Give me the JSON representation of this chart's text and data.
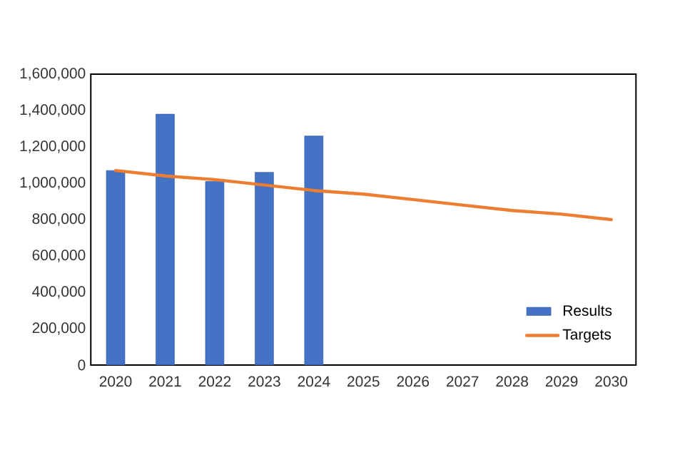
{
  "chart_data": {
    "type": "bar",
    "categories": [
      "2020",
      "2021",
      "2022",
      "2023",
      "2024",
      "2025",
      "2026",
      "2027",
      "2028",
      "2029",
      "2030"
    ],
    "series": [
      {
        "name": "Results",
        "color": "#4472c4",
        "values": [
          1070000,
          1380000,
          1010000,
          1060000,
          1260000,
          null,
          null,
          null,
          null,
          null,
          null
        ]
      },
      {
        "name": "Targets",
        "type": "line",
        "color": "#ed7d31",
        "values": [
          1070000,
          1040000,
          1020000,
          990000,
          960000,
          940000,
          910000,
          880000,
          850000,
          830000,
          800000
        ]
      }
    ],
    "ylim": [
      0,
      1600000
    ],
    "yticks": [
      0,
      {
        "value": 200000,
        "label": "200,000"
      },
      {
        "value": 400000,
        "label": "400,000"
      },
      {
        "value": 600000,
        "label": "600,000"
      },
      {
        "value": 800000,
        "label": "800,000"
      },
      {
        "value": 1000000,
        "label": "1,000,000"
      },
      {
        "value": 1200000,
        "label": "1,200,000"
      },
      {
        "value": 1400000,
        "label": "1,400,000"
      },
      {
        "value": 1600000,
        "label": "1,600,000"
      }
    ],
    "grid": false,
    "legend": "bottom right",
    "marker": "none"
  }
}
